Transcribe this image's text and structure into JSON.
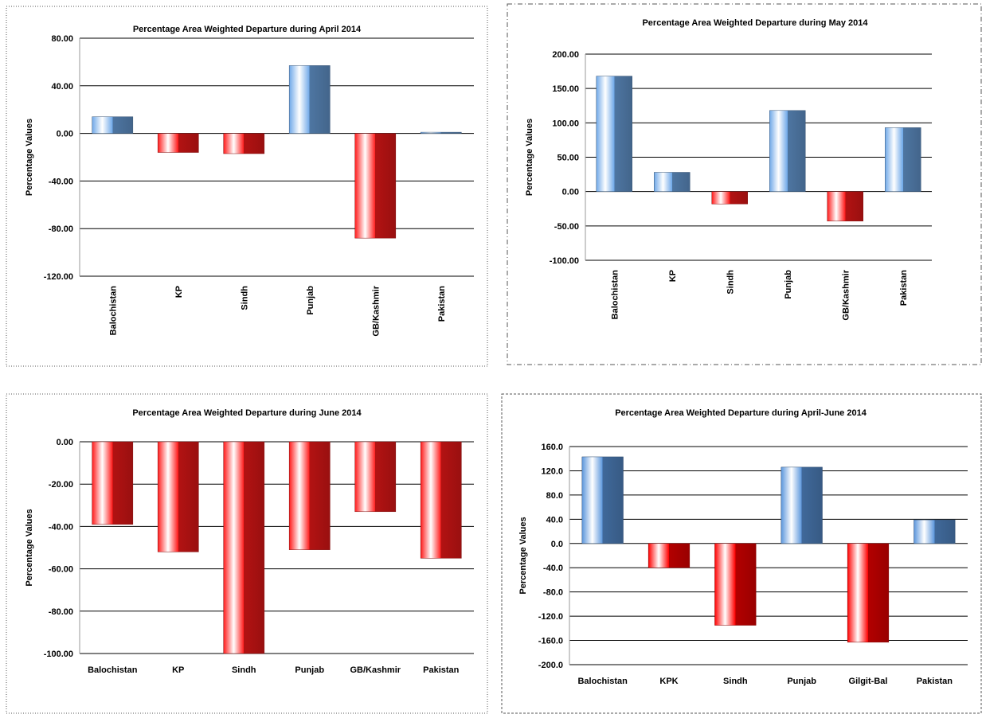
{
  "chart_data": [
    {
      "type": "bar",
      "title": "Percentage Area Weighted Departure during April 2014",
      "y_label": "Percentage Values",
      "categories": [
        "Balochistan",
        "KP",
        "Sindh",
        "Punjab",
        "GB/Kashmir",
        "Pakistan"
      ],
      "values": [
        14,
        -16,
        -17,
        57,
        -88,
        1
      ],
      "ylim": [
        -120,
        80
      ],
      "yticks": [
        {
          "value": 80,
          "label": "80.00"
        },
        {
          "value": 40,
          "label": "40.00"
        },
        {
          "value": 0,
          "label": "0.00"
        },
        {
          "value": -40,
          "label": "-40.00"
        },
        {
          "value": -80,
          "label": "-80.00"
        },
        {
          "value": -120,
          "label": "-120.00"
        }
      ],
      "grid": true,
      "colors": {
        "positive": "#6fa8e8",
        "negative": "#ff1a1a"
      }
    },
    {
      "type": "bar",
      "title": "Percentage Area Weighted Departure during May 2014",
      "y_label": "Percentage Values",
      "categories": [
        "Balochistan",
        "KP",
        "Sindh",
        "Punjab",
        "GB/Kashmir",
        "Pakistan"
      ],
      "values": [
        168,
        28,
        -18,
        118,
        -43,
        93
      ],
      "ylim": [
        -100,
        200
      ],
      "yticks": [
        {
          "value": 200,
          "label": "200.00"
        },
        {
          "value": 150,
          "label": "150.00"
        },
        {
          "value": 100,
          "label": "100.00"
        },
        {
          "value": 50,
          "label": "50.00"
        },
        {
          "value": 0,
          "label": "0.00"
        },
        {
          "value": -50,
          "label": "-50.00"
        },
        {
          "value": -100,
          "label": "-100.00"
        }
      ],
      "grid": true,
      "colors": {
        "positive": "#6fa8e8",
        "negative": "#ff1a1a"
      }
    },
    {
      "type": "bar",
      "title": "Percentage Area Weighted Departure during June 2014",
      "y_label": "Percentage Values",
      "categories": [
        "Balochistan",
        "KP",
        "Sindh",
        "Punjab",
        "GB/Kashmir",
        "Pakistan"
      ],
      "values": [
        -39,
        -52,
        -100,
        -51,
        -33,
        -55
      ],
      "ylim": [
        -100,
        0
      ],
      "yticks": [
        {
          "value": 0,
          "label": "0.00"
        },
        {
          "value": -20,
          "label": "-20.00"
        },
        {
          "value": -40,
          "label": "-40.00"
        },
        {
          "value": -60,
          "label": "-60.00"
        },
        {
          "value": -80,
          "label": "-80.00"
        },
        {
          "value": -100,
          "label": "-100.00"
        }
      ],
      "grid": true,
      "colors": {
        "positive": "#6fa8e8",
        "negative": "#ff1a1a"
      }
    },
    {
      "type": "bar",
      "title": "Percentage Area Weighted Departure during April-June 2014",
      "y_label": "Percentage Values",
      "categories": [
        "Balochistan",
        "KPK",
        "Sindh",
        "Punjab",
        "Gilgit-Bal",
        "Pakistan"
      ],
      "values": [
        143,
        -40,
        -135,
        126,
        -163,
        39
      ],
      "ylim": [
        -200,
        160
      ],
      "yticks": [
        {
          "value": 160,
          "label": "160.0"
        },
        {
          "value": 120,
          "label": "120.0"
        },
        {
          "value": 80,
          "label": "80.0"
        },
        {
          "value": 40,
          "label": "40.0"
        },
        {
          "value": 0,
          "label": "0.0"
        },
        {
          "value": -40,
          "label": "-40.0"
        },
        {
          "value": -80,
          "label": "-80.0"
        },
        {
          "value": -120,
          "label": "-120.0"
        },
        {
          "value": -160,
          "label": "-160.0"
        },
        {
          "value": -200,
          "label": "-200.0"
        }
      ],
      "grid": true,
      "colors": {
        "positive": "#5b96dc",
        "negative": "#ff0000"
      }
    }
  ]
}
